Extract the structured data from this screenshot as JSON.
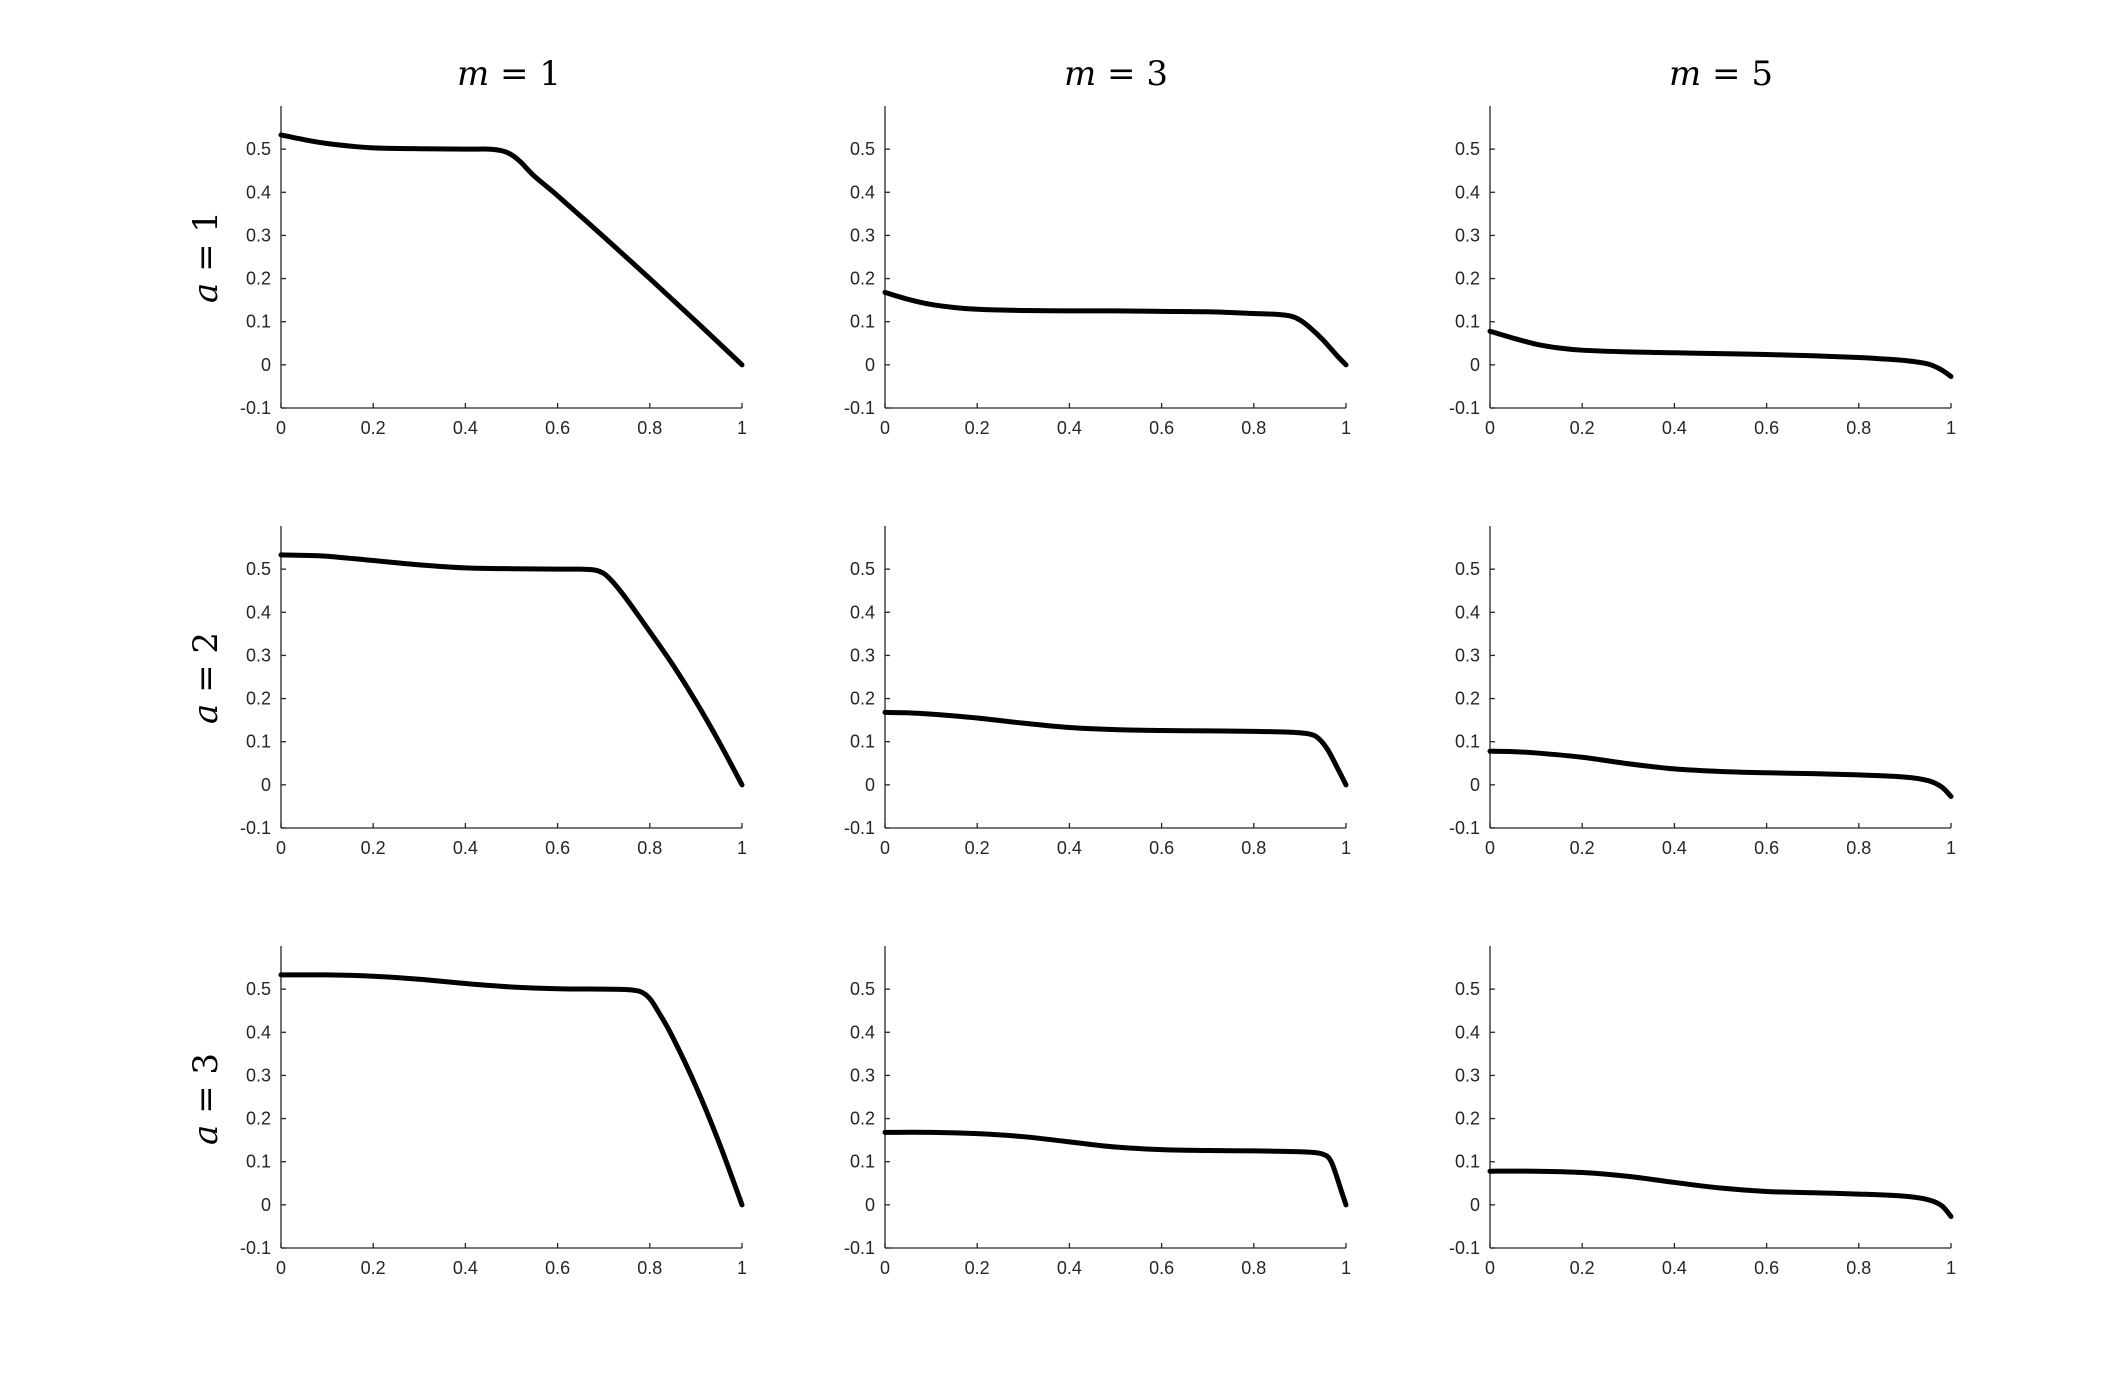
{
  "column_titles": [
    {
      "var": "m",
      "eq": " = ",
      "val": "1"
    },
    {
      "var": "m",
      "eq": " = ",
      "val": "3"
    },
    {
      "var": "m",
      "eq": " = ",
      "val": "5"
    }
  ],
  "row_labels": [
    {
      "var": "a",
      "eq": " = ",
      "val": "1"
    },
    {
      "var": "a",
      "eq": " = ",
      "val": "2"
    },
    {
      "var": "a",
      "eq": " = ",
      "val": "3"
    }
  ],
  "chart_data": [
    {
      "type": "line",
      "row": 0,
      "col": 0,
      "xlim": [
        0,
        1
      ],
      "ylim": [
        -0.1,
        0.6
      ],
      "xticks": [
        "0",
        "0.2",
        "0.4",
        "0.6",
        "0.8",
        "1"
      ],
      "yticks": [
        "-0.1",
        "0",
        "0.1",
        "0.2",
        "0.3",
        "0.4",
        "0.5"
      ],
      "series": [
        {
          "x": [
            0,
            0.05,
            0.1,
            0.15,
            0.2,
            0.3,
            0.4,
            0.45,
            0.48,
            0.5,
            0.52,
            0.55,
            0.6,
            0.7,
            0.8,
            0.9,
            1.0
          ],
          "y": [
            0.533,
            0.522,
            0.513,
            0.507,
            0.503,
            0.501,
            0.5,
            0.5,
            0.496,
            0.487,
            0.47,
            0.437,
            0.392,
            0.297,
            0.2,
            0.101,
            0.0
          ]
        }
      ]
    },
    {
      "type": "line",
      "row": 0,
      "col": 1,
      "xlim": [
        0,
        1
      ],
      "ylim": [
        -0.1,
        0.6
      ],
      "xticks": [
        "0",
        "0.2",
        "0.4",
        "0.6",
        "0.8",
        "1"
      ],
      "yticks": [
        "-0.1",
        "0",
        "0.1",
        "0.2",
        "0.3",
        "0.4",
        "0.5"
      ],
      "series": [
        {
          "x": [
            0,
            0.05,
            0.1,
            0.15,
            0.2,
            0.3,
            0.4,
            0.5,
            0.6,
            0.7,
            0.8,
            0.85,
            0.88,
            0.9,
            0.92,
            0.95,
            0.98,
            1.0
          ],
          "y": [
            0.168,
            0.152,
            0.14,
            0.133,
            0.129,
            0.126,
            0.125,
            0.125,
            0.124,
            0.123,
            0.119,
            0.117,
            0.113,
            0.104,
            0.088,
            0.058,
            0.022,
            0.0
          ]
        }
      ]
    },
    {
      "type": "line",
      "row": 0,
      "col": 2,
      "xlim": [
        0,
        1
      ],
      "ylim": [
        -0.1,
        0.6
      ],
      "xticks": [
        "0",
        "0.2",
        "0.4",
        "0.6",
        "0.8",
        "1"
      ],
      "yticks": [
        "-0.1",
        "0",
        "0.1",
        "0.2",
        "0.3",
        "0.4",
        "0.5"
      ],
      "series": [
        {
          "x": [
            0,
            0.05,
            0.1,
            0.15,
            0.2,
            0.3,
            0.4,
            0.5,
            0.6,
            0.7,
            0.8,
            0.85,
            0.9,
            0.95,
            0.98,
            1.0
          ],
          "y": [
            0.078,
            0.062,
            0.048,
            0.039,
            0.034,
            0.03,
            0.028,
            0.026,
            0.024,
            0.021,
            0.017,
            0.014,
            0.01,
            0.002,
            -0.012,
            -0.027
          ]
        }
      ]
    },
    {
      "type": "line",
      "row": 1,
      "col": 0,
      "xlim": [
        0,
        1
      ],
      "ylim": [
        -0.1,
        0.6
      ],
      "xticks": [
        "0",
        "0.2",
        "0.4",
        "0.6",
        "0.8",
        "1"
      ],
      "yticks": [
        "-0.1",
        "0",
        "0.1",
        "0.2",
        "0.3",
        "0.4",
        "0.5"
      ],
      "series": [
        {
          "x": [
            0,
            0.05,
            0.1,
            0.2,
            0.3,
            0.4,
            0.5,
            0.6,
            0.65,
            0.68,
            0.7,
            0.72,
            0.75,
            0.8,
            0.85,
            0.9,
            0.95,
            1.0
          ],
          "y": [
            0.533,
            0.532,
            0.53,
            0.52,
            0.51,
            0.503,
            0.501,
            0.5,
            0.5,
            0.498,
            0.49,
            0.47,
            0.43,
            0.355,
            0.278,
            0.193,
            0.1,
            0.0
          ]
        }
      ]
    },
    {
      "type": "line",
      "row": 1,
      "col": 1,
      "xlim": [
        0,
        1
      ],
      "ylim": [
        -0.1,
        0.6
      ],
      "xticks": [
        "0",
        "0.2",
        "0.4",
        "0.6",
        "0.8",
        "1"
      ],
      "yticks": [
        "-0.1",
        "0",
        "0.1",
        "0.2",
        "0.3",
        "0.4",
        "0.5"
      ],
      "series": [
        {
          "x": [
            0,
            0.05,
            0.1,
            0.2,
            0.3,
            0.4,
            0.5,
            0.6,
            0.7,
            0.8,
            0.88,
            0.92,
            0.94,
            0.96,
            0.98,
            1.0
          ],
          "y": [
            0.168,
            0.167,
            0.164,
            0.155,
            0.143,
            0.133,
            0.128,
            0.126,
            0.125,
            0.124,
            0.122,
            0.118,
            0.108,
            0.082,
            0.042,
            0.0
          ]
        }
      ]
    },
    {
      "type": "line",
      "row": 1,
      "col": 2,
      "xlim": [
        0,
        1
      ],
      "ylim": [
        -0.1,
        0.6
      ],
      "xticks": [
        "0",
        "0.2",
        "0.4",
        "0.6",
        "0.8",
        "1"
      ],
      "yticks": [
        "-0.1",
        "0",
        "0.1",
        "0.2",
        "0.3",
        "0.4",
        "0.5"
      ],
      "series": [
        {
          "x": [
            0,
            0.05,
            0.1,
            0.2,
            0.3,
            0.4,
            0.5,
            0.6,
            0.7,
            0.8,
            0.9,
            0.95,
            0.98,
            1.0
          ],
          "y": [
            0.078,
            0.077,
            0.074,
            0.064,
            0.049,
            0.037,
            0.031,
            0.028,
            0.026,
            0.023,
            0.018,
            0.01,
            -0.005,
            -0.027
          ]
        }
      ]
    },
    {
      "type": "line",
      "row": 2,
      "col": 0,
      "xlim": [
        0,
        1
      ],
      "ylim": [
        -0.1,
        0.6
      ],
      "xticks": [
        "0",
        "0.2",
        "0.4",
        "0.6",
        "0.8",
        "1"
      ],
      "yticks": [
        "-0.1",
        "0",
        "0.1",
        "0.2",
        "0.3",
        "0.4",
        "0.5"
      ],
      "series": [
        {
          "x": [
            0,
            0.1,
            0.2,
            0.3,
            0.4,
            0.5,
            0.6,
            0.7,
            0.75,
            0.78,
            0.8,
            0.82,
            0.85,
            0.9,
            0.95,
            1.0
          ],
          "y": [
            0.533,
            0.533,
            0.53,
            0.523,
            0.513,
            0.505,
            0.501,
            0.5,
            0.499,
            0.494,
            0.478,
            0.445,
            0.388,
            0.275,
            0.145,
            0.0
          ]
        }
      ]
    },
    {
      "type": "line",
      "row": 2,
      "col": 1,
      "xlim": [
        0,
        1
      ],
      "ylim": [
        -0.1,
        0.6
      ],
      "xticks": [
        "0",
        "0.2",
        "0.4",
        "0.6",
        "0.8",
        "1"
      ],
      "yticks": [
        "-0.1",
        "0",
        "0.1",
        "0.2",
        "0.3",
        "0.4",
        "0.5"
      ],
      "series": [
        {
          "x": [
            0,
            0.1,
            0.2,
            0.3,
            0.4,
            0.5,
            0.6,
            0.7,
            0.8,
            0.9,
            0.94,
            0.96,
            0.97,
            0.98,
            0.99,
            1.0
          ],
          "y": [
            0.168,
            0.168,
            0.165,
            0.158,
            0.146,
            0.134,
            0.128,
            0.126,
            0.125,
            0.123,
            0.12,
            0.112,
            0.095,
            0.065,
            0.032,
            0.0
          ]
        }
      ]
    },
    {
      "type": "line",
      "row": 2,
      "col": 2,
      "xlim": [
        0,
        1
      ],
      "ylim": [
        -0.1,
        0.6
      ],
      "xticks": [
        "0",
        "0.2",
        "0.4",
        "0.6",
        "0.8",
        "1"
      ],
      "yticks": [
        "-0.1",
        "0",
        "0.1",
        "0.2",
        "0.3",
        "0.4",
        "0.5"
      ],
      "series": [
        {
          "x": [
            0,
            0.1,
            0.2,
            0.3,
            0.4,
            0.5,
            0.6,
            0.7,
            0.8,
            0.9,
            0.95,
            0.98,
            1.0
          ],
          "y": [
            0.078,
            0.078,
            0.075,
            0.066,
            0.052,
            0.039,
            0.031,
            0.028,
            0.025,
            0.02,
            0.012,
            -0.002,
            -0.027
          ]
        }
      ]
    }
  ]
}
